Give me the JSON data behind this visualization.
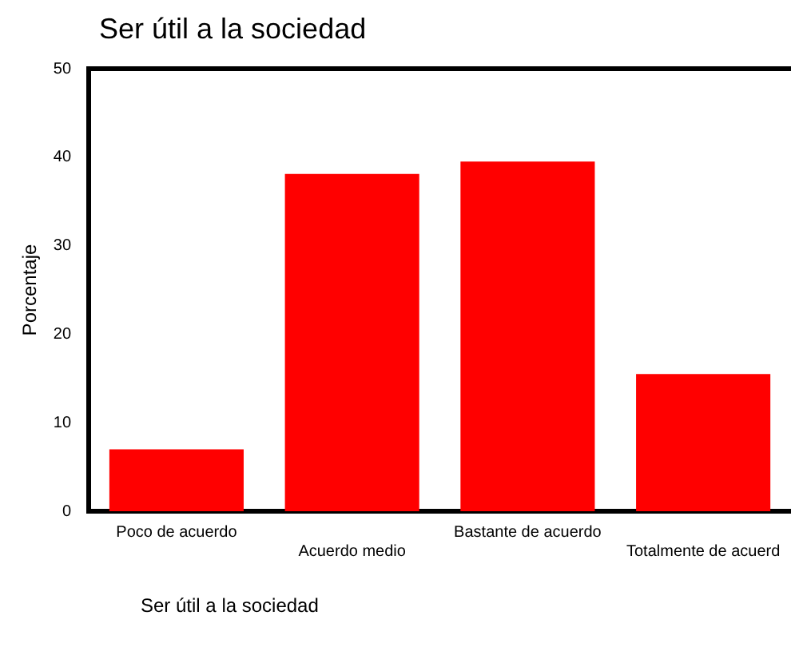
{
  "chart_data": {
    "type": "bar",
    "title": "Ser útil a la sociedad",
    "xlabel": "Ser útil a la sociedad",
    "ylabel": "Porcentaje",
    "categories": [
      "Poco de acuerdo",
      "Acuerdo medio",
      "Bastante de acuerdo",
      "Totalmente de acuerd"
    ],
    "values": [
      7.0,
      38.1,
      39.5,
      15.5
    ],
    "color": "#ff0000",
    "ylim": [
      0,
      50
    ],
    "yticks": [
      0,
      10,
      20,
      30,
      40,
      50
    ],
    "grid": false,
    "legend": false
  }
}
